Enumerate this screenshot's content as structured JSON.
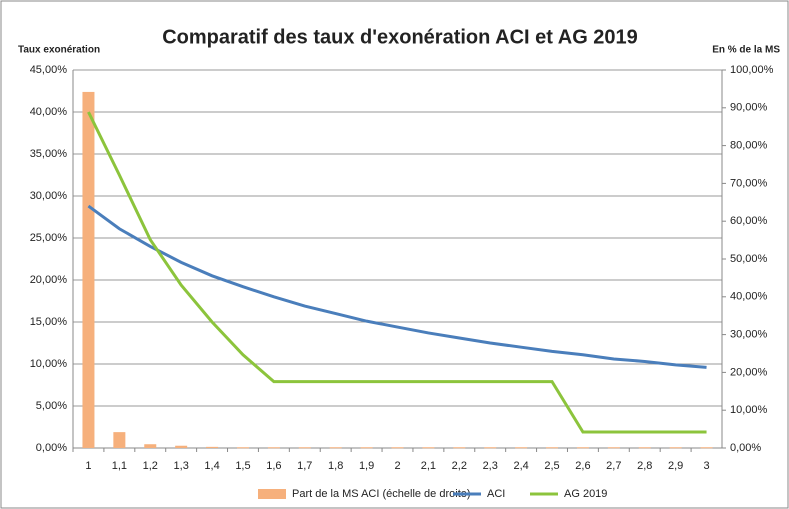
{
  "chart_data": {
    "type": "bar-line",
    "title": "Comparatif des taux d'exonération ACI et AG 2019",
    "y_label": "Taux exonération",
    "y2_label": "En % de la MS",
    "categories": [
      "1",
      "1,1",
      "1,2",
      "1,3",
      "1,4",
      "1,5",
      "1,6",
      "1,7",
      "1,8",
      "1,9",
      "2",
      "2,1",
      "2,2",
      "2,3",
      "2,4",
      "2,5",
      "2,6",
      "2,7",
      "2,8",
      "2,9",
      "3"
    ],
    "series": [
      {
        "name": "Part de la MS ACI (échelle de droite)",
        "type": "bar",
        "axis": "y2",
        "color": "#f6b07c",
        "values": [
          94.2,
          4.2,
          1.0,
          0.6,
          0.3,
          0.2,
          0.2,
          0.2,
          0.2,
          0.2,
          0.2,
          0.2,
          0.2,
          0.2,
          0.2,
          0.2,
          0.2,
          0.2,
          0.2,
          0.2,
          0.2
        ]
      },
      {
        "name": "ACI",
        "type": "line",
        "color": "#4a7ebb",
        "values": [
          28.8,
          26.1,
          24.0,
          22.1,
          20.5,
          19.2,
          18.0,
          16.9,
          16.0,
          15.1,
          14.4,
          13.7,
          13.1,
          12.5,
          12.0,
          11.5,
          11.1,
          10.6,
          10.3,
          9.9,
          9.6
        ]
      },
      {
        "name": "AG 2019",
        "type": "line",
        "color": "#8cc43c",
        "values": [
          40.0,
          32.5,
          24.8,
          19.4,
          15.0,
          11.1,
          7.9,
          7.9,
          7.9,
          7.9,
          7.9,
          7.9,
          7.9,
          7.9,
          7.9,
          7.9,
          1.9,
          1.9,
          1.9,
          1.9,
          1.9
        ]
      }
    ],
    "ylim": [
      0,
      45
    ],
    "yticks": [
      {
        "value": 0,
        "label": "0,00%"
      },
      {
        "value": 5,
        "label": "5,00%"
      },
      {
        "value": 10,
        "label": "10,00%"
      },
      {
        "value": 15,
        "label": "15,00%"
      },
      {
        "value": 20,
        "label": "20,00%"
      },
      {
        "value": 25,
        "label": "25,00%"
      },
      {
        "value": 30,
        "label": "30,00%"
      },
      {
        "value": 35,
        "label": "35,00%"
      },
      {
        "value": 40,
        "label": "40,00%"
      },
      {
        "value": 45,
        "label": "45,00%"
      }
    ],
    "y2lim": [
      0,
      100
    ],
    "y2ticks": [
      {
        "value": 0,
        "label": "0,00%"
      },
      {
        "value": 10,
        "label": "10,00%"
      },
      {
        "value": 20,
        "label": "20,00%"
      },
      {
        "value": 30,
        "label": "30,00%"
      },
      {
        "value": 40,
        "label": "40,00%"
      },
      {
        "value": 50,
        "label": "50,00%"
      },
      {
        "value": 60,
        "label": "60,00%"
      },
      {
        "value": 70,
        "label": "70,00%"
      },
      {
        "value": 80,
        "label": "80,00%"
      },
      {
        "value": 90,
        "label": "90,00%"
      },
      {
        "value": 100,
        "label": "100,00%"
      }
    ],
    "grid": true,
    "legend": "bottom"
  }
}
